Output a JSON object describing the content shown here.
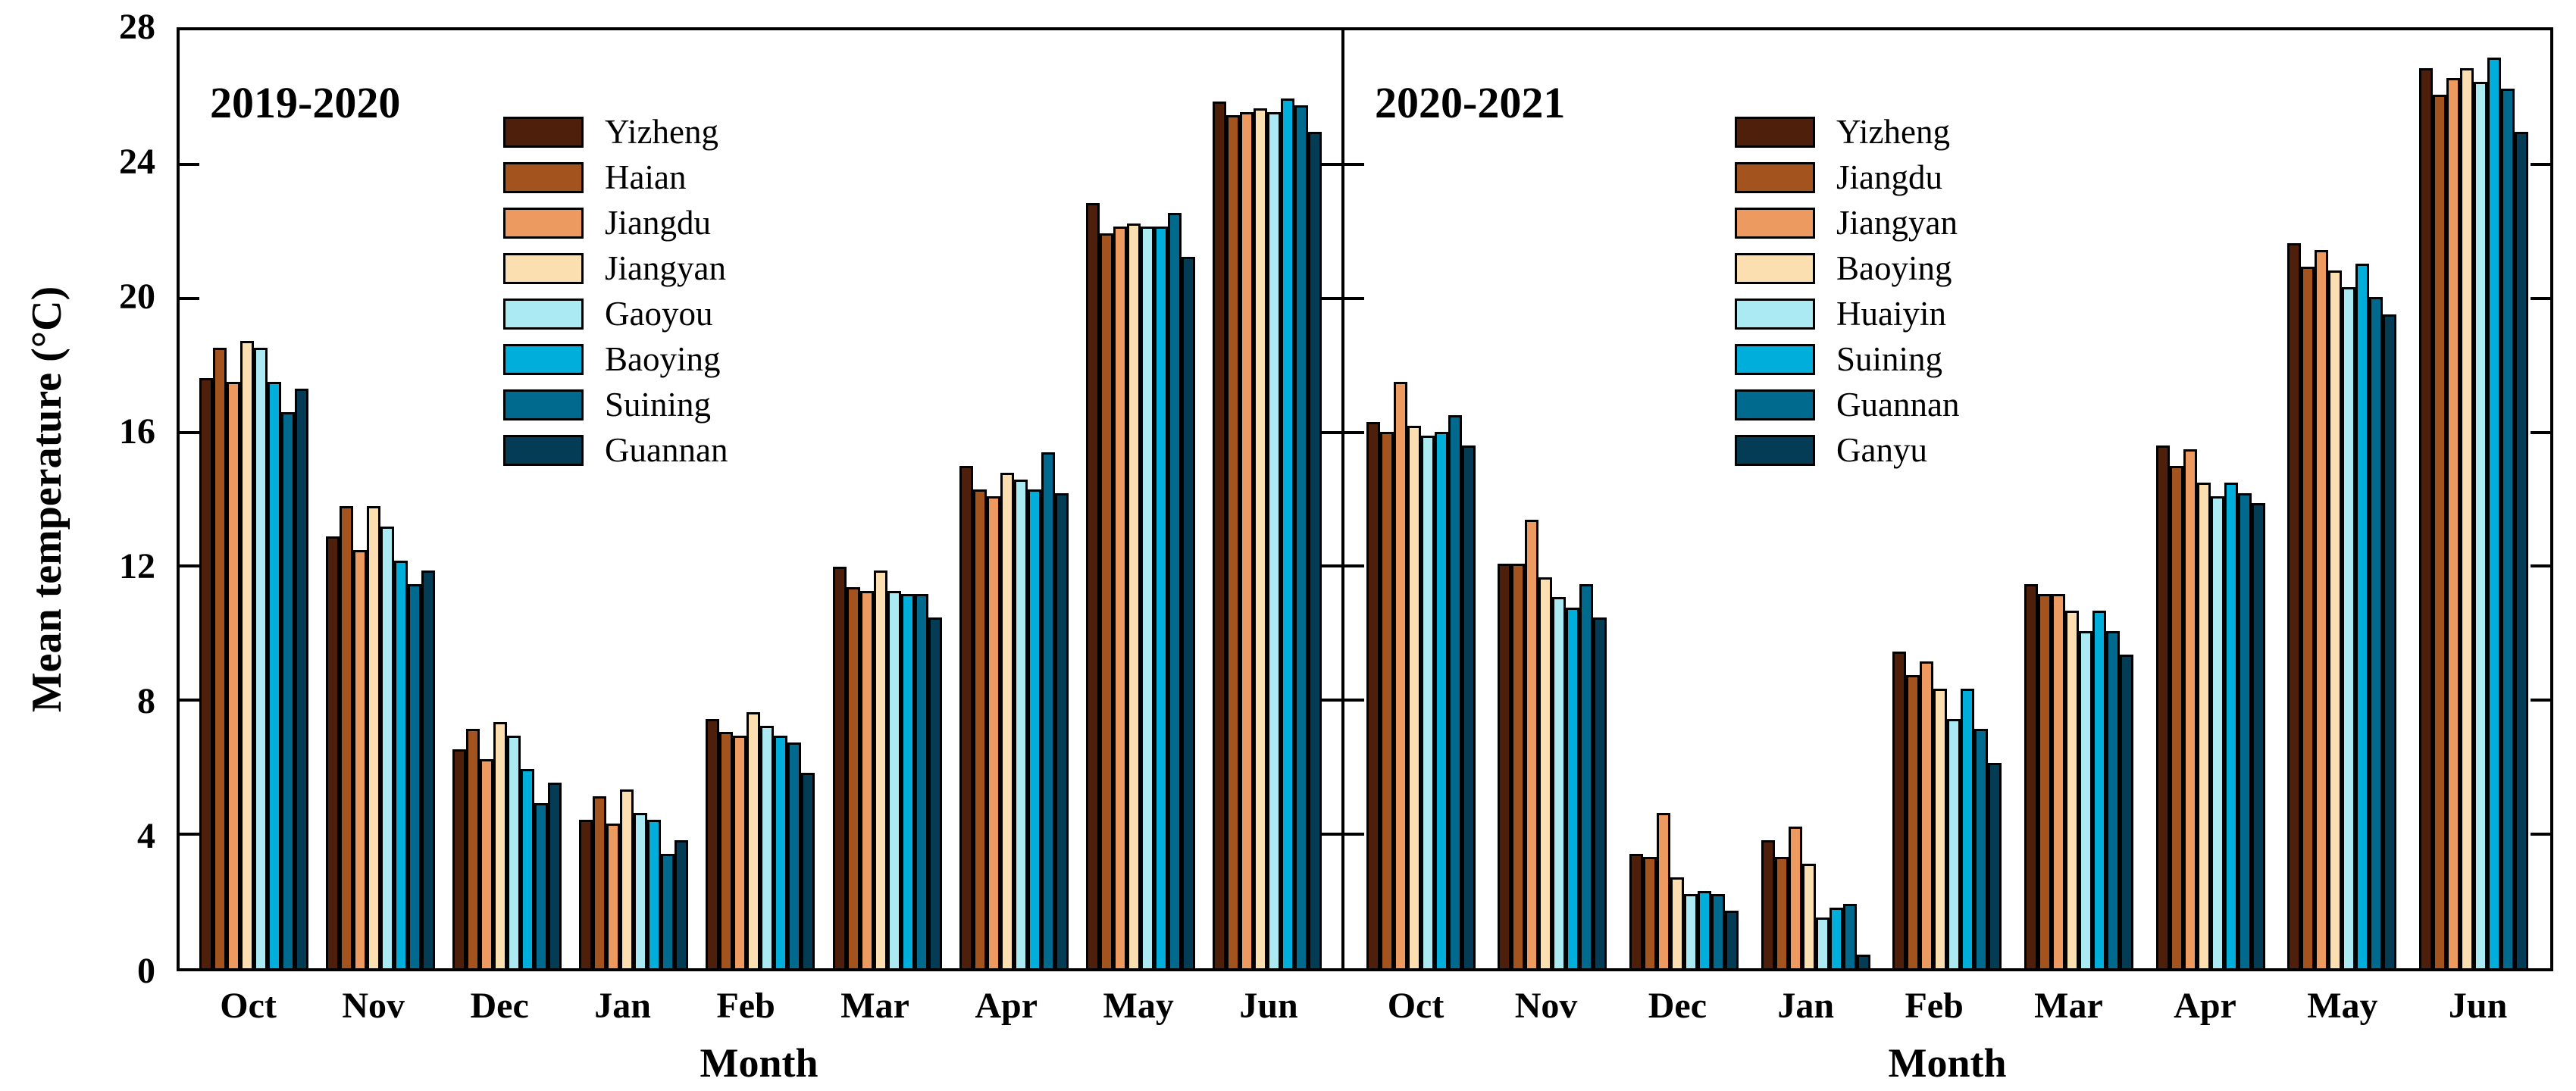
{
  "colors": [
    "#4E200B",
    "#A3531E",
    "#EC9A60",
    "#FCDFB0",
    "#ABEAF2",
    "#00AEDC",
    "#006A8E",
    "#053C55"
  ],
  "axis": {
    "ylabel": "Mean temperature (°C)",
    "xlabel": "Month",
    "yticks": [
      0,
      4,
      8,
      12,
      16,
      20,
      24,
      28
    ],
    "ymax": 28
  },
  "chart_data": [
    {
      "type": "bar",
      "title": "2019-2020",
      "xlabel": "Month",
      "ylabel": "Mean temperature (°C)",
      "ylim": [
        0,
        28
      ],
      "grid": false,
      "legend_position": "upper-left-inside",
      "categories": [
        "Oct",
        "Nov",
        "Dec",
        "Jan",
        "Feb",
        "Mar",
        "Apr",
        "May",
        "Jun"
      ],
      "series": [
        {
          "name": "Yizheng",
          "values": [
            17.5,
            12.8,
            6.5,
            4.4,
            7.4,
            11.9,
            14.9,
            22.7,
            25.7
          ]
        },
        {
          "name": "Haian",
          "values": [
            18.4,
            13.7,
            7.1,
            5.1,
            7.0,
            11.3,
            14.2,
            21.8,
            25.3
          ]
        },
        {
          "name": "Jiangdu",
          "values": [
            17.4,
            12.4,
            6.2,
            4.3,
            6.9,
            11.2,
            14.0,
            22.0,
            25.4
          ]
        },
        {
          "name": "Jiangyan",
          "values": [
            18.6,
            13.7,
            7.3,
            5.3,
            7.6,
            11.8,
            14.7,
            22.1,
            25.5
          ]
        },
        {
          "name": "Gaoyou",
          "values": [
            18.4,
            13.1,
            6.9,
            4.6,
            7.2,
            11.2,
            14.5,
            22.0,
            25.4
          ]
        },
        {
          "name": "Baoying",
          "values": [
            17.4,
            12.1,
            5.9,
            4.4,
            6.9,
            11.1,
            14.2,
            22.0,
            25.8
          ]
        },
        {
          "name": "Suining",
          "values": [
            16.5,
            11.4,
            4.9,
            3.4,
            6.7,
            11.1,
            15.3,
            22.4,
            25.6
          ]
        },
        {
          "name": "Guannan",
          "values": [
            17.2,
            11.8,
            5.5,
            3.8,
            5.8,
            10.4,
            14.1,
            21.1,
            24.8
          ]
        }
      ]
    },
    {
      "type": "bar",
      "title": "2020-2021",
      "xlabel": "Month",
      "ylabel": "Mean temperature (°C)",
      "ylim": [
        0,
        28
      ],
      "grid": false,
      "legend_position": "upper-left-inside",
      "categories": [
        "Oct",
        "Nov",
        "Dec",
        "Jan",
        "Feb",
        "Mar",
        "Apr",
        "May",
        "Jun"
      ],
      "series": [
        {
          "name": "Yizheng",
          "values": [
            16.2,
            12.0,
            3.4,
            3.8,
            9.4,
            11.4,
            15.5,
            21.5,
            26.7
          ]
        },
        {
          "name": "Jiangdu",
          "values": [
            15.9,
            12.0,
            3.3,
            3.3,
            8.7,
            11.1,
            14.9,
            20.8,
            25.9
          ]
        },
        {
          "name": "Jiangyan",
          "values": [
            17.4,
            13.3,
            4.6,
            4.2,
            9.1,
            11.1,
            15.4,
            21.3,
            26.4
          ]
        },
        {
          "name": "Baoying",
          "values": [
            16.1,
            11.6,
            2.7,
            3.1,
            8.3,
            10.6,
            14.4,
            20.7,
            26.7
          ]
        },
        {
          "name": "Huaiyin",
          "values": [
            15.8,
            11.0,
            2.2,
            1.5,
            7.4,
            10.0,
            14.0,
            20.2,
            26.3
          ]
        },
        {
          "name": "Suining",
          "values": [
            15.9,
            10.7,
            2.3,
            1.8,
            8.3,
            10.6,
            14.4,
            20.9,
            27.0
          ]
        },
        {
          "name": "Guannan",
          "values": [
            16.4,
            11.4,
            2.2,
            1.9,
            7.1,
            10.0,
            14.1,
            19.9,
            26.1
          ]
        },
        {
          "name": "Ganyu",
          "values": [
            15.5,
            10.4,
            1.7,
            0.4,
            6.1,
            9.3,
            13.8,
            19.4,
            24.8
          ]
        }
      ]
    }
  ]
}
